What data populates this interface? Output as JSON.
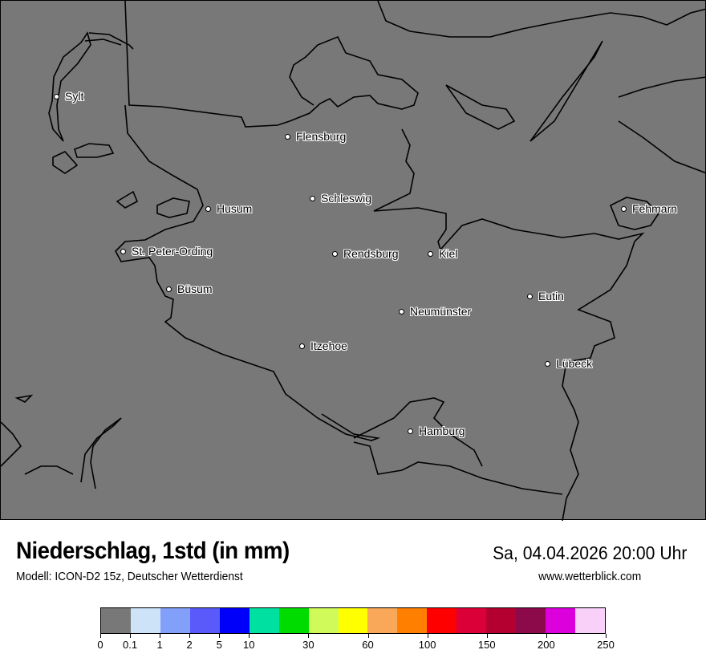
{
  "map": {
    "background_color": "#787878",
    "coastline_color": "#000000",
    "cities": [
      "Sylt",
      "Flensburg",
      "Schleswig",
      "Husum",
      "St. Peter-Ording",
      "Rendsburg",
      "Kiel",
      "Fehmarn",
      "Eutin",
      "Neumünster",
      "Büsum",
      "Itzehoe",
      "Lübeck",
      "Hamburg"
    ]
  },
  "header": {
    "title": "Niederschlag, 1std (in mm)",
    "subtitle": "Modell: ICON-D2 15z, Deutscher Wetterdienst",
    "datetime": "Sa, 04.04.2026 20:00 Uhr",
    "website": "www.wetterblick.com"
  },
  "legend": {
    "colors": [
      "#787878",
      "#cde3f8",
      "#82a0fa",
      "#5a5afa",
      "#0000fa",
      "#00e0a0",
      "#00dc00",
      "#d0fa5a",
      "#ffff00",
      "#f8a858",
      "#ff8000",
      "#ff0000",
      "#dc0038",
      "#b40030",
      "#8c0a4a",
      "#dc00dc",
      "#f8d0f8"
    ],
    "tick_labels": [
      "0",
      "0.1",
      "1",
      "2",
      "5",
      "10",
      "",
      "30",
      "",
      "60",
      "",
      "100",
      "",
      "150",
      "",
      "200",
      "",
      "250"
    ]
  }
}
